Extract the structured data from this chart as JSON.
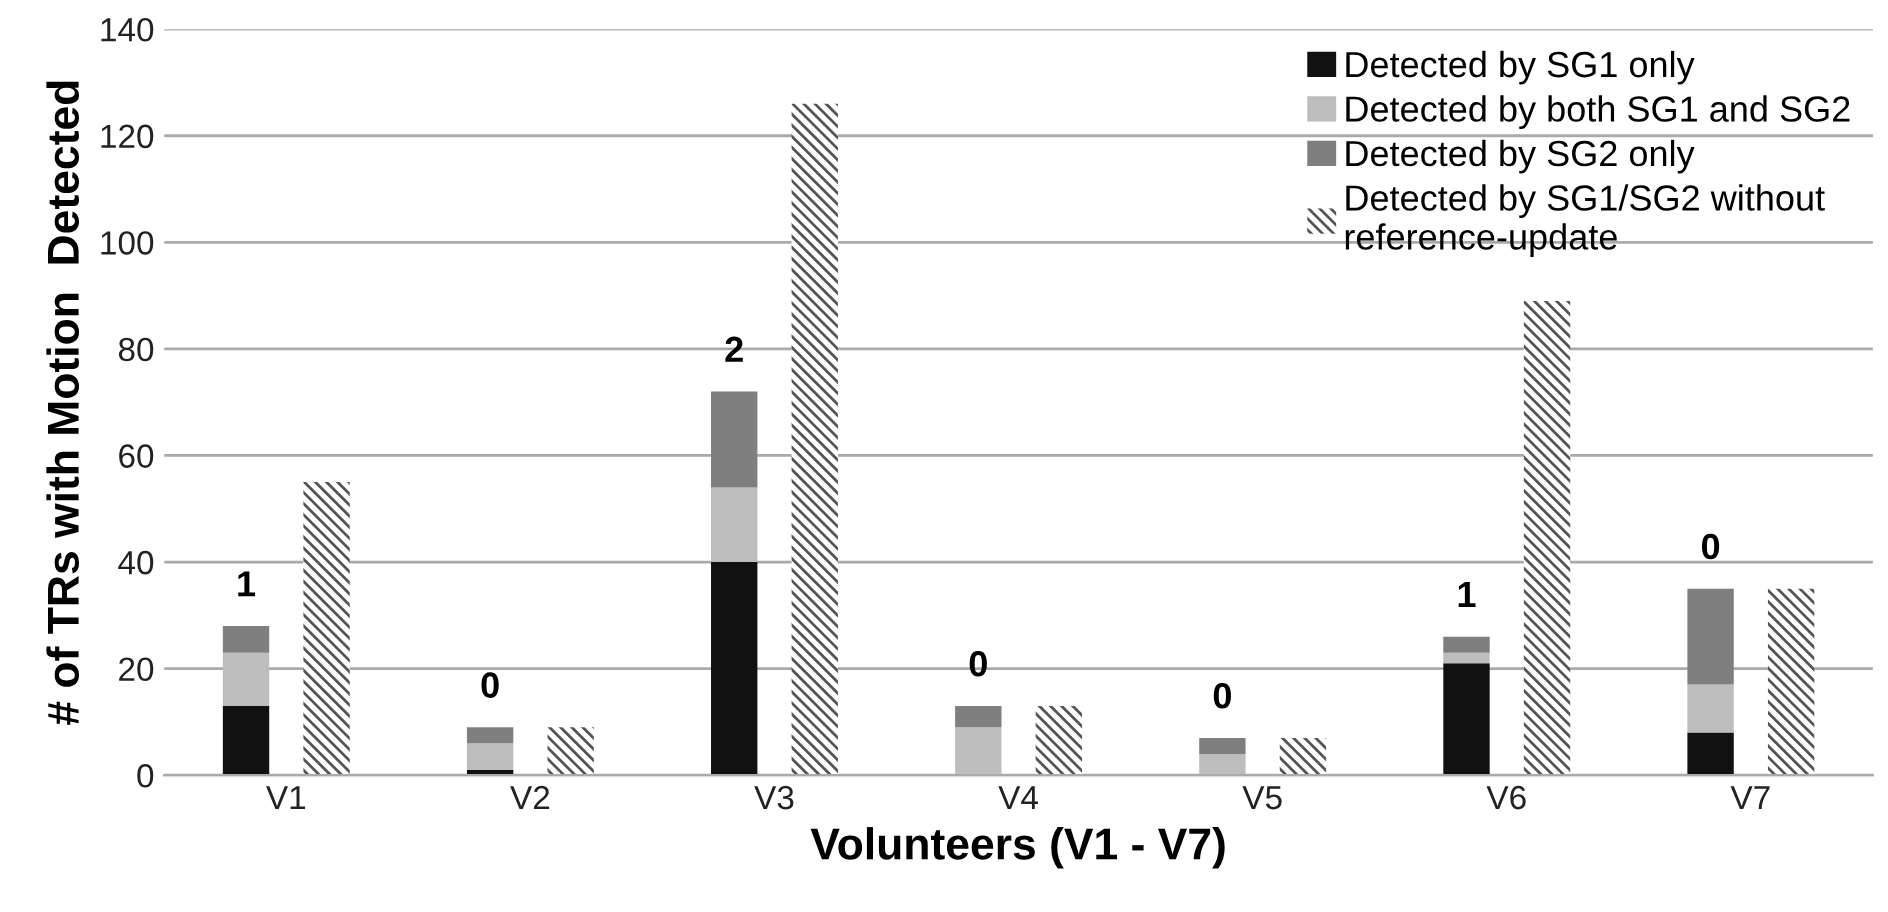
{
  "chart_data": [
    {
      "type": "bar",
      "stacked": true,
      "xlabel": "Volunteers (V1 - V7)",
      "ylabel": "# of TRs with Motion  Detected",
      "categories": [
        "V1",
        "V2",
        "V3",
        "V4",
        "V5",
        "V6",
        "V7"
      ],
      "series": [
        {
          "name": "Detected by SG1 only",
          "color": "#111111",
          "values": [
            13,
            1,
            40,
            0,
            0,
            21,
            8
          ]
        },
        {
          "name": "Detected by both SG1 and SG2",
          "color": "#bdbdbd",
          "values": [
            10,
            5,
            14,
            9,
            4,
            2,
            9
          ]
        },
        {
          "name": "Detected by SG2 only",
          "color": "#7f7f7f",
          "values": [
            5,
            3,
            18,
            4,
            3,
            3,
            18
          ]
        }
      ],
      "annotations": [
        "1",
        "0",
        "2",
        "0",
        "0",
        "1",
        "0"
      ],
      "ylim": [
        0,
        140
      ],
      "yticks": [
        0,
        20,
        40,
        60,
        80,
        100,
        120,
        140
      ],
      "grid": "y",
      "legend": "top right"
    },
    {
      "type": "bar",
      "categories": [
        null,
        null,
        null,
        null,
        null,
        null,
        null
      ],
      "series": [
        {
          "name": "Detected by SG1/SG2 without\nreference-update",
          "color": "#555555",
          "values": [
            55,
            9,
            126,
            13,
            7,
            89,
            35
          ]
        }
      ],
      "ylim": [
        0,
        140
      ],
      "legend": "top right"
    }
  ]
}
